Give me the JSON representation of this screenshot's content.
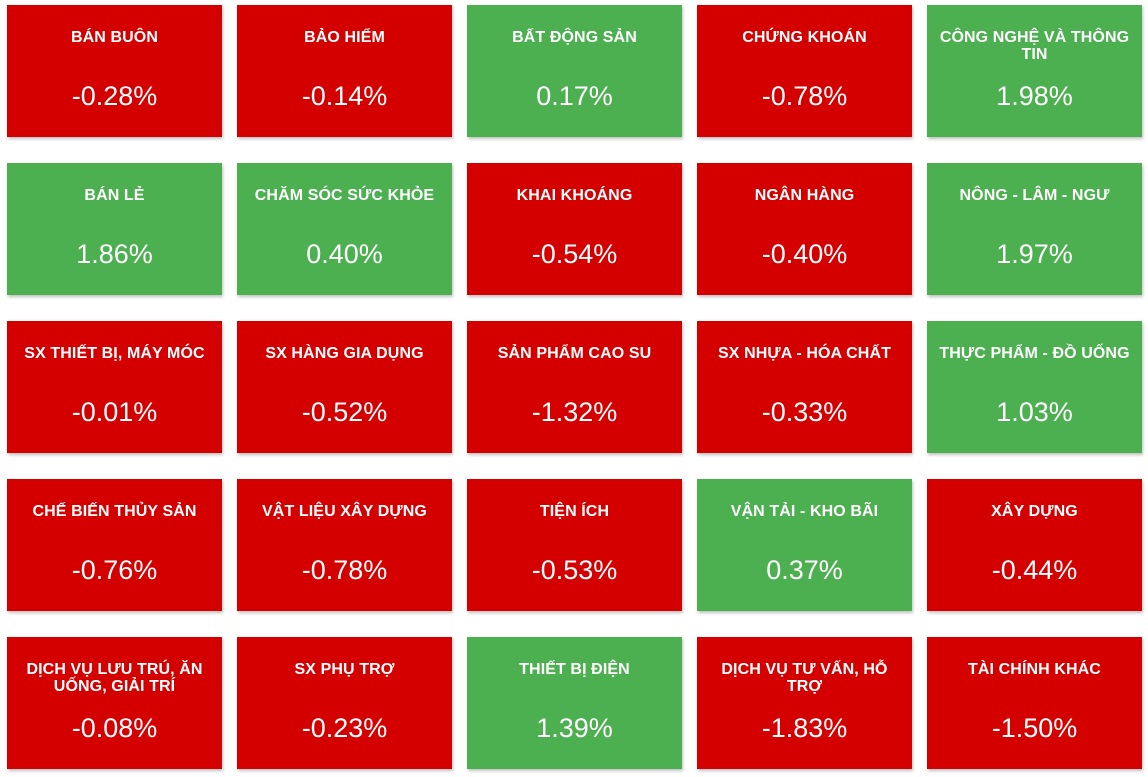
{
  "colors": {
    "negative": "#d40000",
    "positive": "#4caf50"
  },
  "sectors": [
    {
      "name": "BÁN BUÔN",
      "value": "-0.28%",
      "trend": "negative"
    },
    {
      "name": "BẢO HIỂM",
      "value": "-0.14%",
      "trend": "negative"
    },
    {
      "name": "BẤT ĐỘNG SẢN",
      "value": "0.17%",
      "trend": "positive"
    },
    {
      "name": "CHỨNG KHOÁN",
      "value": "-0.78%",
      "trend": "negative"
    },
    {
      "name": "CÔNG NGHỆ VÀ THÔNG TIN",
      "value": "1.98%",
      "trend": "positive"
    },
    {
      "name": "BÁN LẺ",
      "value": "1.86%",
      "trend": "positive"
    },
    {
      "name": "CHĂM SÓC SỨC KHỎE",
      "value": "0.40%",
      "trend": "positive"
    },
    {
      "name": "KHAI KHOÁNG",
      "value": "-0.54%",
      "trend": "negative"
    },
    {
      "name": "NGÂN HÀNG",
      "value": "-0.40%",
      "trend": "negative"
    },
    {
      "name": "NÔNG - LÂM - NGƯ",
      "value": "1.97%",
      "trend": "positive"
    },
    {
      "name": "SX THIẾT BỊ, MÁY MÓC",
      "value": "-0.01%",
      "trend": "negative"
    },
    {
      "name": "SX HÀNG GIA DỤNG",
      "value": "-0.52%",
      "trend": "negative"
    },
    {
      "name": "SẢN PHẨM CAO SU",
      "value": "-1.32%",
      "trend": "negative"
    },
    {
      "name": "SX NHỰA - HÓA CHẤT",
      "value": "-0.33%",
      "trend": "negative"
    },
    {
      "name": "THỰC PHẨM - ĐỒ UỐNG",
      "value": "1.03%",
      "trend": "positive"
    },
    {
      "name": "CHẾ BIẾN THỦY SẢN",
      "value": "-0.76%",
      "trend": "negative"
    },
    {
      "name": "VẬT LIỆU XÂY DỰNG",
      "value": "-0.78%",
      "trend": "negative"
    },
    {
      "name": "TIỆN ÍCH",
      "value": "-0.53%",
      "trend": "negative"
    },
    {
      "name": "VẬN TẢI - KHO BÃI",
      "value": "0.37%",
      "trend": "positive"
    },
    {
      "name": "XÂY DỰNG",
      "value": "-0.44%",
      "trend": "negative"
    },
    {
      "name": "DỊCH VỤ LƯU TRÚ, ĂN UỐNG, GIẢI TRÍ",
      "value": "-0.08%",
      "trend": "negative"
    },
    {
      "name": "SX PHỤ TRỢ",
      "value": "-0.23%",
      "trend": "negative"
    },
    {
      "name": "THIẾT BỊ ĐIỆN",
      "value": "1.39%",
      "trend": "positive"
    },
    {
      "name": "DỊCH VỤ TƯ VẤN, HỖ TRỢ",
      "value": "-1.83%",
      "trend": "negative"
    },
    {
      "name": "TÀI CHÍNH KHÁC",
      "value": "-1.50%",
      "trend": "negative"
    }
  ]
}
